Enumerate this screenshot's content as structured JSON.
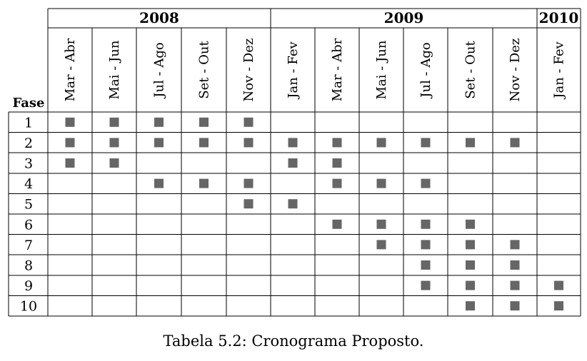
{
  "table": {
    "phase_header": "Fase",
    "years": [
      {
        "label": "2008",
        "periods": [
          "Mar - Abr",
          "Mai - Jun",
          "Jul - Ago",
          "Set - Out",
          "Nov - Dez"
        ]
      },
      {
        "label": "2009",
        "periods": [
          "Jan - Fev",
          "Mar - Abr",
          "Mai - Jun",
          "Jul - Ago",
          "Set - Out",
          "Nov - Dez"
        ]
      },
      {
        "label": "2010",
        "periods": [
          "Jan - Fev"
        ]
      }
    ],
    "rows": [
      {
        "phase": "1",
        "active": [
          1,
          1,
          1,
          1,
          1,
          0,
          0,
          0,
          0,
          0,
          0,
          0
        ]
      },
      {
        "phase": "2",
        "active": [
          1,
          1,
          1,
          1,
          1,
          1,
          1,
          1,
          1,
          1,
          1,
          0
        ]
      },
      {
        "phase": "3",
        "active": [
          1,
          1,
          0,
          0,
          0,
          1,
          1,
          0,
          0,
          0,
          0,
          0
        ]
      },
      {
        "phase": "4",
        "active": [
          0,
          0,
          1,
          1,
          1,
          0,
          1,
          1,
          1,
          0,
          0,
          0
        ]
      },
      {
        "phase": "5",
        "active": [
          0,
          0,
          0,
          0,
          1,
          1,
          0,
          0,
          0,
          0,
          0,
          0
        ]
      },
      {
        "phase": "6",
        "active": [
          0,
          0,
          0,
          0,
          0,
          0,
          1,
          1,
          1,
          1,
          0,
          0
        ]
      },
      {
        "phase": "7",
        "active": [
          0,
          0,
          0,
          0,
          0,
          0,
          0,
          1,
          1,
          1,
          1,
          0
        ]
      },
      {
        "phase": "8",
        "active": [
          0,
          0,
          0,
          0,
          0,
          0,
          0,
          0,
          1,
          1,
          1,
          0
        ]
      },
      {
        "phase": "9",
        "active": [
          0,
          0,
          0,
          0,
          0,
          0,
          0,
          0,
          1,
          1,
          1,
          1
        ]
      },
      {
        "phase": "10",
        "active": [
          0,
          0,
          0,
          0,
          0,
          0,
          0,
          0,
          0,
          1,
          1,
          1
        ]
      }
    ],
    "mark_color": "#666666"
  },
  "caption": "Tabela 5.2: Cronograma Proposto."
}
